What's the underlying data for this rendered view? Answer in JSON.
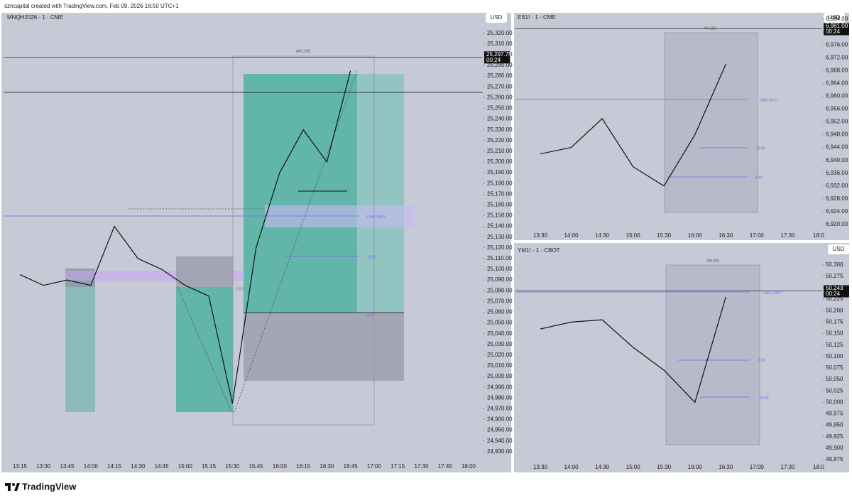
{
  "header": {
    "text": "szncapital created with TradingView.com, Feb 09, 2026 16:50 UTC+1"
  },
  "footer": {
    "brand": "TradingView"
  },
  "chart_data": [
    {
      "type": "line",
      "title": "MNQH2026 · 1 · CME",
      "currency": "USD",
      "color": "#111111",
      "categories": [
        "13:15",
        "13:30",
        "13:45",
        "14:00",
        "14:15",
        "14:30",
        "14:45",
        "15:00",
        "15:15",
        "15:30",
        "15:45",
        "16:00",
        "16:15",
        "16:30",
        "16:45",
        "17:00",
        "17:15",
        "17:30",
        "17:45",
        "18:00"
      ],
      "values": [
        25095,
        25085,
        25090,
        25085,
        25140,
        25110,
        25100,
        25085,
        25075,
        24975,
        25120,
        25190,
        25230,
        25200,
        25285,
        null,
        null,
        null,
        null,
        null
      ],
      "last_price": {
        "value": 25297.75,
        "label": "25,297.75"
      },
      "countdown": "00:24",
      "annotations": [
        "AM [138]",
        "Daily Open",
        "10:00",
        "8:30",
        "[OB]"
      ],
      "ylim": [
        24912,
        25339
      ],
      "yticks": [
        {
          "value": 25320,
          "label": "25,320.00"
        },
        {
          "value": 25310,
          "label": "25,310.00"
        },
        {
          "value": 25300,
          "label": "25,300.00"
        },
        {
          "value": 25290,
          "label": "25,290.00"
        },
        {
          "value": 25280,
          "label": "25,280.00"
        },
        {
          "value": 25270,
          "label": "25,270.00"
        },
        {
          "value": 25260,
          "label": "25,260.00"
        },
        {
          "value": 25250,
          "label": "25,250.00"
        },
        {
          "value": 25240,
          "label": "25,240.00"
        },
        {
          "value": 25230,
          "label": "25,230.00"
        },
        {
          "value": 25220,
          "label": "25,220.00"
        },
        {
          "value": 25210,
          "label": "25,210.00"
        },
        {
          "value": 25200,
          "label": "25,200.00"
        },
        {
          "value": 25190,
          "label": "25,190.00"
        },
        {
          "value": 25180,
          "label": "25,180.00"
        },
        {
          "value": 25170,
          "label": "25,170.00"
        },
        {
          "value": 25160,
          "label": "25,160.00"
        },
        {
          "value": 25150,
          "label": "25,150.00"
        },
        {
          "value": 25140,
          "label": "25,140.00"
        },
        {
          "value": 25130,
          "label": "25,130.00"
        },
        {
          "value": 25120,
          "label": "25,120.00"
        },
        {
          "value": 25110,
          "label": "25,110.00"
        },
        {
          "value": 25100,
          "label": "25,100.00"
        },
        {
          "value": 25090,
          "label": "25,090.00"
        },
        {
          "value": 25080,
          "label": "25,080.00"
        },
        {
          "value": 25070,
          "label": "25,070.00"
        },
        {
          "value": 25060,
          "label": "25,060.00"
        },
        {
          "value": 25050,
          "label": "25,050.00"
        },
        {
          "value": 25040,
          "label": "25,040.00"
        },
        {
          "value": 25030,
          "label": "25,030.00"
        },
        {
          "value": 25020,
          "label": "25,020.00"
        },
        {
          "value": 25010,
          "label": "25,010.00"
        },
        {
          "value": 25000,
          "label": "25,000.00"
        },
        {
          "value": 24990,
          "label": "24,990.00"
        },
        {
          "value": 24980,
          "label": "24,980.00"
        },
        {
          "value": 24970,
          "label": "24,970.00"
        },
        {
          "value": 24960,
          "label": "24,960.00"
        },
        {
          "value": 24950,
          "label": "24,950.00"
        },
        {
          "value": 24940,
          "label": "24,940.00"
        },
        {
          "value": 24930,
          "label": "24,930.00"
        }
      ]
    },
    {
      "type": "line",
      "title": "ES1! · 1 · CME",
      "currency": "USD",
      "color": "#111111",
      "categories": [
        "13:30",
        "14:00",
        "14:30",
        "15:00",
        "15:30",
        "16:00",
        "16:30",
        "17:00",
        "17:30",
        "18:0"
      ],
      "values": [
        6942,
        6944,
        6953,
        6938,
        6932,
        6948,
        6970,
        null,
        null,
        null
      ],
      "last_price": {
        "value": 6981,
        "label": "6,981.00"
      },
      "countdown": "00:24",
      "annotations": [
        "AM [23]",
        "Daily Open",
        "10:00",
        "8:30"
      ],
      "ylim": [
        6918,
        6986
      ],
      "yticks": [
        {
          "value": 6984,
          "label": "6,984.00"
        },
        {
          "value": 6980,
          "label": "6,980.00"
        },
        {
          "value": 6976,
          "label": "6,976.00"
        },
        {
          "value": 6972,
          "label": "6,972.00"
        },
        {
          "value": 6968,
          "label": "6,968.00"
        },
        {
          "value": 6964,
          "label": "6,964.00"
        },
        {
          "value": 6960,
          "label": "6,960.00"
        },
        {
          "value": 6956,
          "label": "6,956.00"
        },
        {
          "value": 6952,
          "label": "6,952.00"
        },
        {
          "value": 6948,
          "label": "6,948.00"
        },
        {
          "value": 6944,
          "label": "6,944.00"
        },
        {
          "value": 6940,
          "label": "6,940.00"
        },
        {
          "value": 6936,
          "label": "6,936.00"
        },
        {
          "value": 6932,
          "label": "6,932.00"
        },
        {
          "value": 6928,
          "label": "6,928.00"
        },
        {
          "value": 6924,
          "label": "6,924.00"
        },
        {
          "value": 6920,
          "label": "6,920.00"
        }
      ]
    },
    {
      "type": "line",
      "title": "YM1! · 1 · CBOT",
      "currency": "USD",
      "color": "#111111",
      "categories": [
        "13:30",
        "14:00",
        "14:30",
        "15:00",
        "15:30",
        "16:00",
        "16:30",
        "17:00",
        "17:30",
        "18:0"
      ],
      "values": [
        50160,
        50175,
        50180,
        50120,
        50070,
        50000,
        50230,
        null,
        null,
        null
      ],
      "last_price": {
        "value": 50243,
        "label": "50,243"
      },
      "countdown": "00:24",
      "annotations": [
        "AM [28]",
        "Daily Open",
        "8:30",
        "10:00"
      ],
      "ylim": [
        49847,
        50343
      ],
      "yticks": [
        {
          "value": 50300,
          "label": "50,300"
        },
        {
          "value": 50275,
          "label": "50,275"
        },
        {
          "value": 50250,
          "label": "50,250"
        },
        {
          "value": 50225,
          "label": "50,225"
        },
        {
          "value": 50200,
          "label": "50,200"
        },
        {
          "value": 50175,
          "label": "50,175"
        },
        {
          "value": 50150,
          "label": "50,150"
        },
        {
          "value": 50125,
          "label": "50,125"
        },
        {
          "value": 50100,
          "label": "50,100"
        },
        {
          "value": 50075,
          "label": "50,075"
        },
        {
          "value": 50050,
          "label": "50,050"
        },
        {
          "value": 50025,
          "label": "50,025"
        },
        {
          "value": 50000,
          "label": "50,000"
        },
        {
          "value": 49975,
          "label": "49,975"
        },
        {
          "value": 49950,
          "label": "49,950"
        },
        {
          "value": 49925,
          "label": "49,925"
        },
        {
          "value": 49900,
          "label": "49,900"
        },
        {
          "value": 49875,
          "label": "49,875"
        }
      ]
    }
  ]
}
